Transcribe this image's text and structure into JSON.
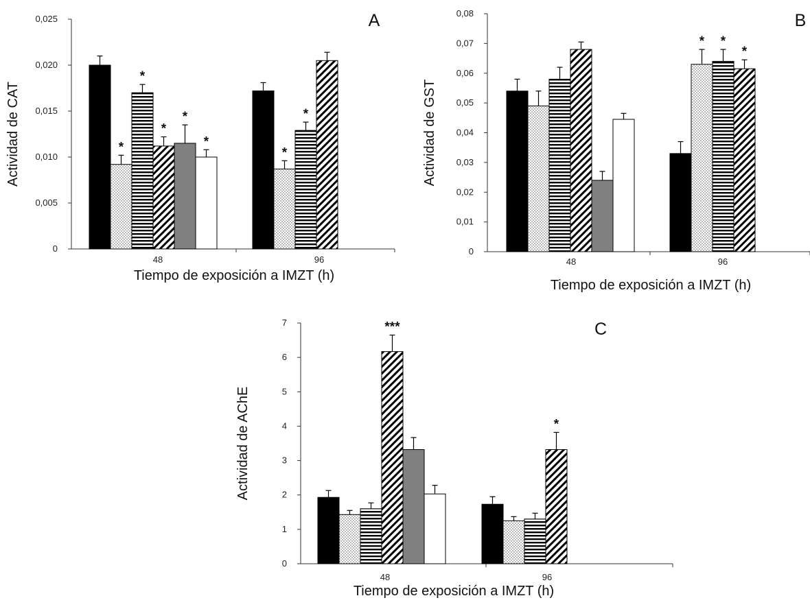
{
  "chart_data": [
    {
      "panel": "A",
      "type": "bar",
      "xlabel": "Tiempo de exposición a IMZT (h)",
      "ylabel": "Actividad de CAT",
      "ylim": [
        0,
        0.025
      ],
      "yticks": [
        "0",
        "0,005",
        "0,010",
        "0,015",
        "0,020",
        "0,025"
      ],
      "groups": [
        {
          "label": "48",
          "bars": [
            {
              "value": 0.02,
              "err": 0.001,
              "pattern": "black",
              "star": ""
            },
            {
              "value": 0.0092,
              "err": 0.001,
              "pattern": "dots",
              "star": "*"
            },
            {
              "value": 0.017,
              "err": 0.0009,
              "pattern": "hlines",
              "star": "*"
            },
            {
              "value": 0.0112,
              "err": 0.001,
              "pattern": "diag",
              "star": "*"
            },
            {
              "value": 0.0115,
              "err": 0.002,
              "pattern": "gray",
              "star": "*"
            },
            {
              "value": 0.01,
              "err": 0.0008,
              "pattern": "white",
              "star": "*"
            }
          ]
        },
        {
          "label": "96",
          "bars": [
            {
              "value": 0.0172,
              "err": 0.0009,
              "pattern": "black",
              "star": ""
            },
            {
              "value": 0.0087,
              "err": 0.0009,
              "pattern": "dots",
              "star": "*"
            },
            {
              "value": 0.0129,
              "err": 0.0009,
              "pattern": "hlines",
              "star": "*"
            },
            {
              "value": 0.0205,
              "err": 0.0009,
              "pattern": "diag",
              "star": ""
            }
          ]
        }
      ]
    },
    {
      "panel": "B",
      "type": "bar",
      "xlabel": "Tiempo de exposición a IMZT (h)",
      "ylabel": "Actividad de GST",
      "ylim": [
        0,
        0.08
      ],
      "yticks": [
        "0",
        "0,01",
        "0,02",
        "0,03",
        "0,04",
        "0,05",
        "0,06",
        "0,07",
        "0,08"
      ],
      "groups": [
        {
          "label": "48",
          "bars": [
            {
              "value": 0.054,
              "err": 0.004,
              "pattern": "black",
              "star": ""
            },
            {
              "value": 0.049,
              "err": 0.005,
              "pattern": "dots",
              "star": ""
            },
            {
              "value": 0.058,
              "err": 0.004,
              "pattern": "hlines",
              "star": ""
            },
            {
              "value": 0.068,
              "err": 0.0025,
              "pattern": "diag",
              "star": ""
            },
            {
              "value": 0.024,
              "err": 0.003,
              "pattern": "gray",
              "star": ""
            },
            {
              "value": 0.0445,
              "err": 0.002,
              "pattern": "white",
              "star": ""
            }
          ]
        },
        {
          "label": "96",
          "bars": [
            {
              "value": 0.033,
              "err": 0.004,
              "pattern": "black",
              "star": ""
            },
            {
              "value": 0.063,
              "err": 0.005,
              "pattern": "dots",
              "star": "*"
            },
            {
              "value": 0.064,
              "err": 0.004,
              "pattern": "hlines",
              "star": "*"
            },
            {
              "value": 0.0615,
              "err": 0.003,
              "pattern": "diag",
              "star": "*"
            }
          ]
        }
      ]
    },
    {
      "panel": "C",
      "type": "bar",
      "xlabel": "Tiempo de exposición a IMZT (h)",
      "ylabel": "Actividad de AChE",
      "ylim": [
        0,
        7
      ],
      "yticks": [
        "0",
        "1",
        "2",
        "3",
        "4",
        "5",
        "6",
        "7"
      ],
      "groups": [
        {
          "label": "48",
          "bars": [
            {
              "value": 1.93,
              "err": 0.2,
              "pattern": "black",
              "star": ""
            },
            {
              "value": 1.43,
              "err": 0.12,
              "pattern": "dots",
              "star": ""
            },
            {
              "value": 1.6,
              "err": 0.17,
              "pattern": "hlines",
              "star": ""
            },
            {
              "value": 6.17,
              "err": 0.48,
              "pattern": "diag",
              "star": "***"
            },
            {
              "value": 3.32,
              "err": 0.35,
              "pattern": "gray",
              "star": ""
            },
            {
              "value": 2.03,
              "err": 0.25,
              "pattern": "white",
              "star": ""
            }
          ]
        },
        {
          "label": "96",
          "bars": [
            {
              "value": 1.73,
              "err": 0.22,
              "pattern": "black",
              "star": ""
            },
            {
              "value": 1.25,
              "err": 0.12,
              "pattern": "dots",
              "star": ""
            },
            {
              "value": 1.3,
              "err": 0.17,
              "pattern": "hlines",
              "star": ""
            },
            {
              "value": 3.32,
              "err": 0.5,
              "pattern": "diag",
              "star": "*"
            }
          ]
        }
      ]
    }
  ]
}
